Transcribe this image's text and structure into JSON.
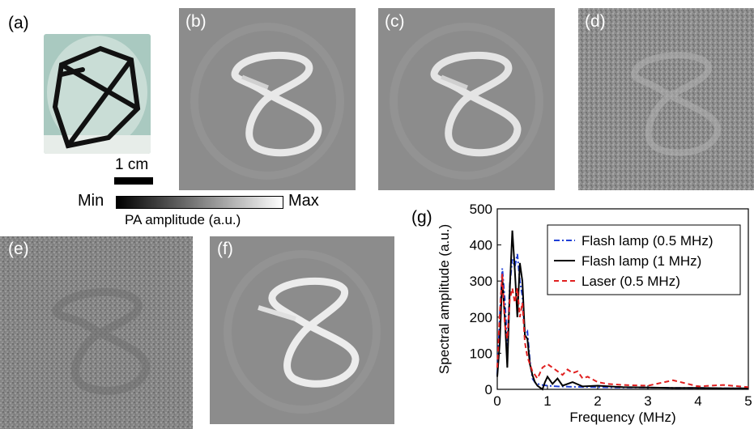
{
  "panel_labels": {
    "a": "(a)",
    "b": "(b)",
    "c": "(c)",
    "d": "(d)",
    "e": "(e)",
    "f": "(f)",
    "g": "(g)"
  },
  "scale_bar": {
    "label": "1 cm"
  },
  "colorbar": {
    "min_label": "Min",
    "max_label": "Max",
    "title": "PA amplitude (a.u.)"
  },
  "chart_data": {
    "type": "line",
    "xlabel": "Frequency (MHz)",
    "ylabel": "Spectral amplitude (a.u.)",
    "xlim": [
      0,
      5
    ],
    "ylim": [
      0,
      500
    ],
    "xticks": [
      "0",
      "1",
      "2",
      "3",
      "4",
      "5"
    ],
    "yticks": [
      "0",
      "100",
      "200",
      "300",
      "400",
      "500"
    ],
    "legend_position": "top-right",
    "grid": false,
    "series": [
      {
        "name": "Flash lamp (0.5 MHz)",
        "color": "#1f3fd6",
        "dash": "dashdot",
        "x": [
          0,
          0.05,
          0.1,
          0.15,
          0.2,
          0.25,
          0.3,
          0.35,
          0.4,
          0.45,
          0.5,
          0.55,
          0.6,
          0.65,
          0.7,
          0.75,
          0.8,
          0.9,
          1.0,
          1.2,
          1.5,
          2.0,
          2.5,
          3.0,
          3.5,
          4.0,
          4.5,
          5.0
        ],
        "y": [
          40,
          200,
          335,
          250,
          120,
          290,
          360,
          340,
          375,
          300,
          260,
          150,
          160,
          80,
          30,
          20,
          15,
          12,
          10,
          8,
          7,
          6,
          5,
          5,
          4,
          4,
          3,
          3
        ]
      },
      {
        "name": "Flash lamp (1 MHz)",
        "color": "#000000",
        "dash": "solid",
        "x": [
          0,
          0.05,
          0.1,
          0.15,
          0.2,
          0.25,
          0.3,
          0.35,
          0.4,
          0.45,
          0.5,
          0.55,
          0.6,
          0.65,
          0.7,
          0.75,
          0.8,
          0.85,
          0.9,
          0.95,
          1.0,
          1.1,
          1.2,
          1.3,
          1.5,
          1.7,
          2.0,
          2.5,
          3.0,
          3.5,
          4.0,
          4.5,
          5.0
        ],
        "y": [
          35,
          130,
          310,
          200,
          60,
          280,
          440,
          330,
          200,
          350,
          300,
          150,
          140,
          70,
          40,
          20,
          10,
          5,
          0,
          20,
          35,
          15,
          30,
          10,
          20,
          8,
          10,
          6,
          5,
          4,
          4,
          3,
          3
        ]
      },
      {
        "name": "Laser (0.5 MHz)",
        "color": "#e02020",
        "dash": "dashed",
        "x": [
          0,
          0.05,
          0.1,
          0.15,
          0.2,
          0.25,
          0.3,
          0.35,
          0.4,
          0.45,
          0.5,
          0.55,
          0.6,
          0.65,
          0.7,
          0.8,
          0.9,
          1.0,
          1.1,
          1.2,
          1.3,
          1.4,
          1.5,
          1.6,
          1.7,
          1.8,
          2.0,
          2.2,
          2.5,
          3.0,
          3.5,
          4.0,
          4.5,
          5.0
        ],
        "y": [
          60,
          210,
          320,
          180,
          140,
          250,
          280,
          240,
          280,
          200,
          240,
          130,
          90,
          70,
          50,
          30,
          60,
          70,
          60,
          50,
          40,
          55,
          45,
          50,
          30,
          35,
          20,
          15,
          12,
          10,
          25,
          8,
          12,
          6
        ]
      }
    ]
  }
}
